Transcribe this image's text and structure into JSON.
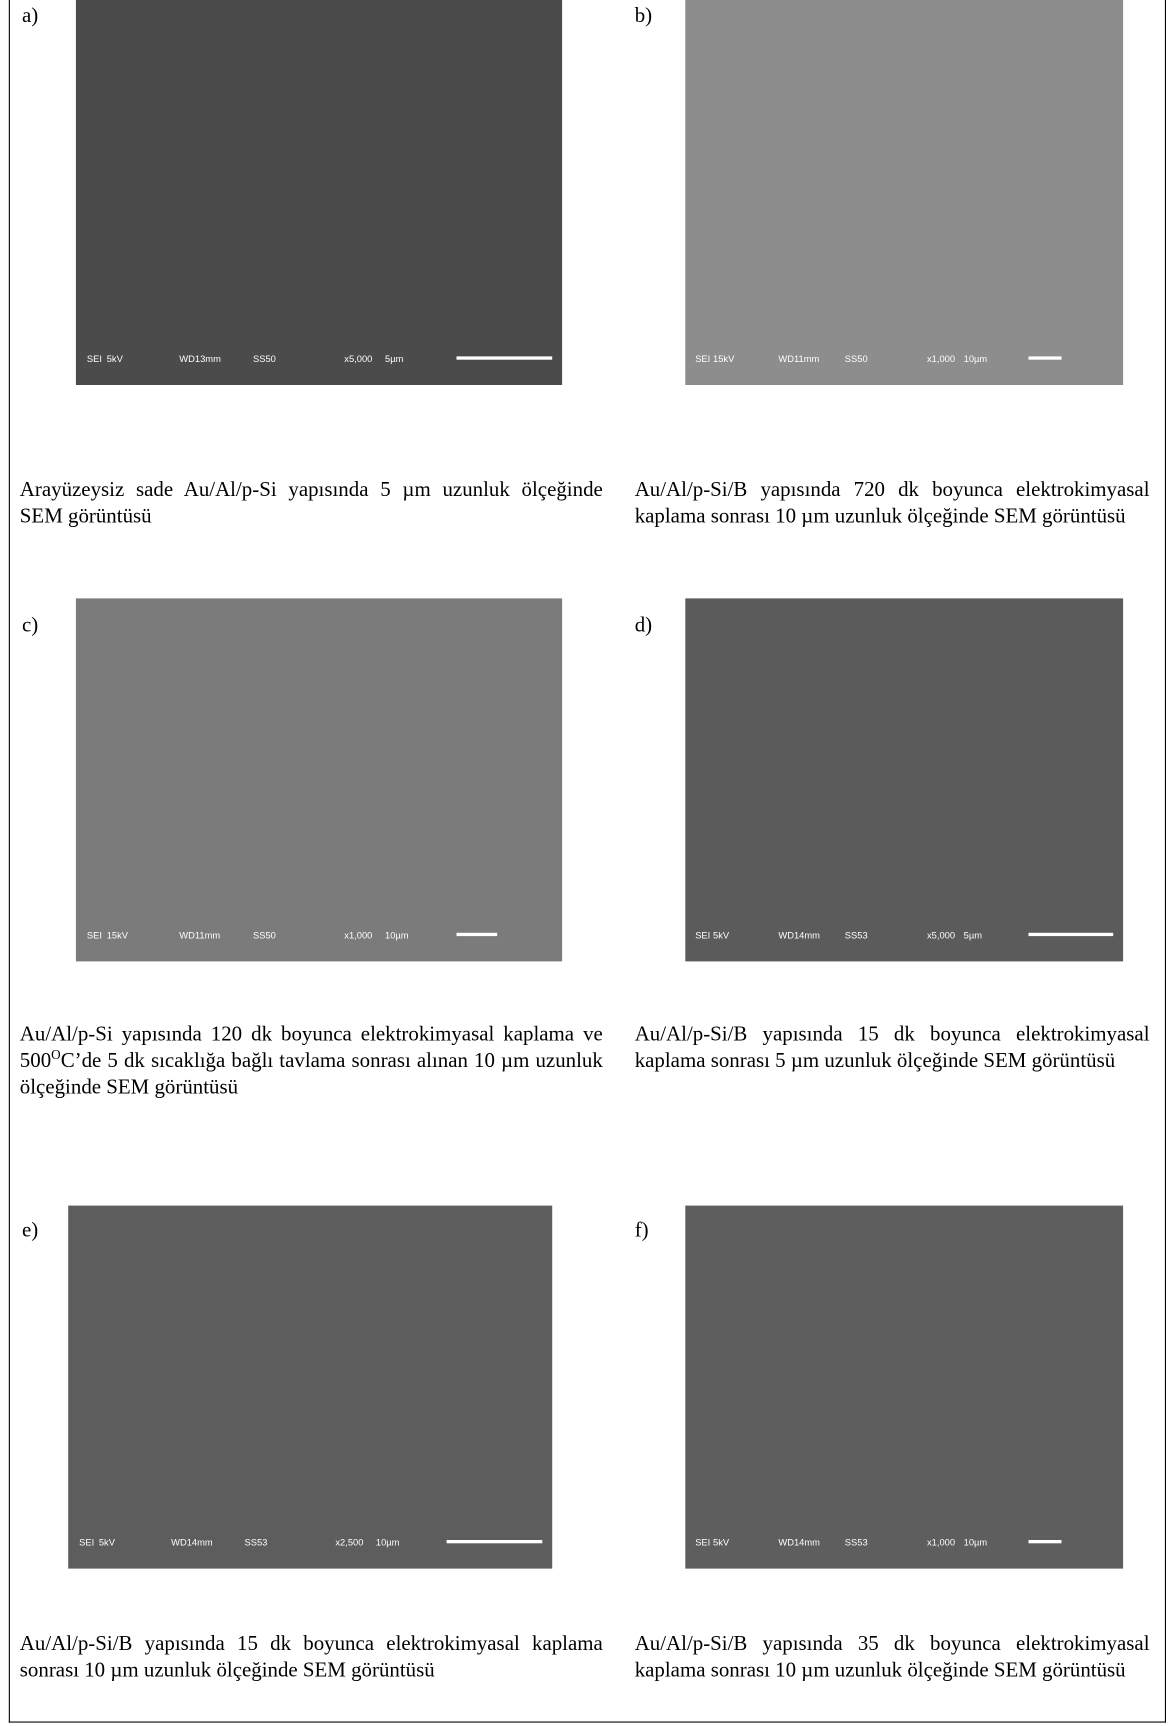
{
  "panels": [
    {
      "label": "a)",
      "info": [
        "SEI",
        "5kV",
        "WD13mm",
        "SS50",
        "x5,000",
        "5µm"
      ],
      "caption": [
        "Arayüzeysiz sade Au/Al/p-Si yapısında 5 µm uzunluk ölçeğinde SEM görüntüsü"
      ]
    },
    {
      "label": "b)",
      "info": [
        "SEI",
        "15kV",
        "WD11mm",
        "SS50",
        "x1,000",
        "10µm"
      ],
      "caption": [
        "Au/Al/p-Si/B yapısında 720 dk boyunca elektrokimyasal kaplama sonrası 10 µm uzunluk ölçeğinde SEM görüntüsü"
      ]
    },
    {
      "label": "c)",
      "info": [
        "SEI",
        "15kV",
        "WD11mm",
        "SS50",
        "x1,000",
        "10µm"
      ],
      "caption": [
        "Au/Al/p-Si yapısında 120 dk boyunca elektrokimyasal kaplama ve 500",
        "O",
        "C’de 5 dk sıcaklığa bağlı tavlama sonrası alınan 10 µm uzunluk ölçeğinde SEM görüntüsü"
      ]
    },
    {
      "label": "d)",
      "info": [
        "SEI",
        "5kV",
        "WD14mm",
        "SS53",
        "x5,000",
        "5µm"
      ],
      "caption": [
        "Au/Al/p-Si/B yapısında 15 dk boyunca elektrokimyasal kaplama sonrası 5 µm uzunluk ölçeğinde SEM görüntüsü"
      ]
    },
    {
      "label": "e)",
      "info": [
        "SEI",
        "5kV",
        "WD14mm",
        "SS53",
        "x2,500",
        "10µm"
      ],
      "caption": [
        "Au/Al/p-Si/B yapısında 15 dk boyunca elektrokimyasal kaplama sonrası 10 µm uzunluk ölçeğinde SEM görüntüsü"
      ]
    },
    {
      "label": "f)",
      "info": [
        "SEI",
        "5kV",
        "WD14mm",
        "SS53",
        "x1,000",
        "10µm"
      ],
      "caption": [
        "Au/Al/p-Si/B yapısında 35 dk boyunca elektrokimyasal kaplama sonrası 10 µm uzunluk ölçeğinde SEM görüntüsü"
      ]
    }
  ]
}
